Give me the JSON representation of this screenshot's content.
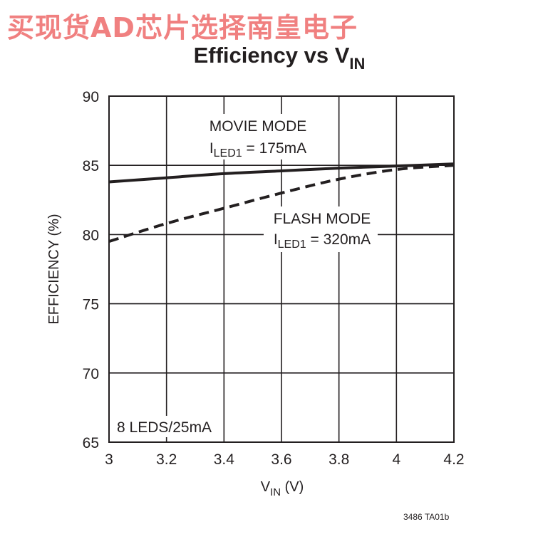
{
  "watermark": "买现货AD芯片选择南皇电子",
  "chart_data": {
    "type": "line",
    "title": {
      "main": "Efficiency vs V",
      "subscript": "IN"
    },
    "xlabel": {
      "main": "V",
      "subscript": "IN",
      "suffix": " (V)"
    },
    "ylabel": "EFFICIENCY (%)",
    "xlim": [
      3,
      4.2
    ],
    "ylim": [
      65,
      90
    ],
    "x_ticks": [
      "3",
      "3.2",
      "3.4",
      "3.6",
      "3.8",
      "4",
      "4.2"
    ],
    "y_ticks": [
      "90",
      "85",
      "80",
      "75",
      "70",
      "65"
    ],
    "grid": true,
    "series": [
      {
        "style": "solid",
        "x": [
          3.0,
          3.2,
          3.4,
          3.6,
          3.8,
          4.0,
          4.2
        ],
        "y": [
          83.8,
          84.1,
          84.4,
          84.6,
          84.8,
          84.95,
          85.1
        ]
      },
      {
        "style": "dashed",
        "x": [
          3.0,
          3.2,
          3.4,
          3.6,
          3.8,
          4.0,
          4.2
        ],
        "y": [
          79.5,
          80.8,
          81.9,
          83.0,
          84.0,
          84.7,
          85.0
        ]
      }
    ],
    "annotations": [
      {
        "line1": "MOVIE MODE",
        "prefix": "I",
        "subscript": "LED1",
        "suffix": " = 175mA"
      },
      {
        "line1": "FLASH MODE",
        "prefix": "I",
        "subscript": "LED1",
        "suffix": " = 320mA"
      },
      {
        "text": "8 LEDS/25mA"
      }
    ],
    "figure_code": "3486 TA01b"
  }
}
